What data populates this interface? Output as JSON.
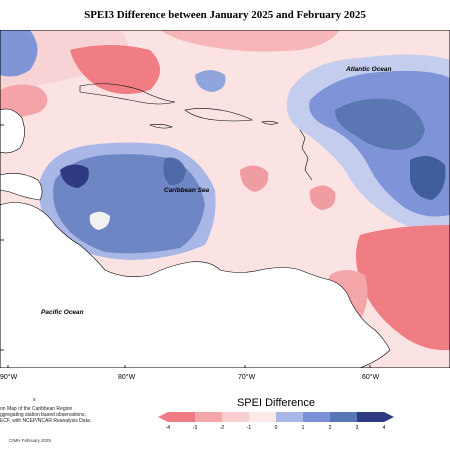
{
  "title": "SPEI3 Difference between January 2025 and February 2025",
  "regions": {
    "atlantic": "Atlantic Ocean",
    "caribbean": "Caribbean Sea",
    "pacific": "Pacific Ocean"
  },
  "longitudes": [
    "90°W",
    "80°W",
    "70°W",
    "60°W"
  ],
  "notes": [
    "on Map of the Caribbean Region",
    "ggregating station based observations,",
    "ECF, with NCEP/NCAR Reanalysis Data."
  ],
  "note_mark": "s",
  "legend": {
    "title": "SPEI Difference",
    "ticks": [
      "-4",
      "-3",
      "-2",
      "-1",
      "0",
      "1",
      "2",
      "3",
      "4"
    ],
    "colors": [
      "#f07b82",
      "#f4a6a9",
      "#f8cfd1",
      "#fde8e8",
      "#d9eef3",
      "#a9b7e6",
      "#7a90d8",
      "#5677b6",
      "#2e3a82"
    ]
  },
  "credit": "CIMH February 2025"
}
